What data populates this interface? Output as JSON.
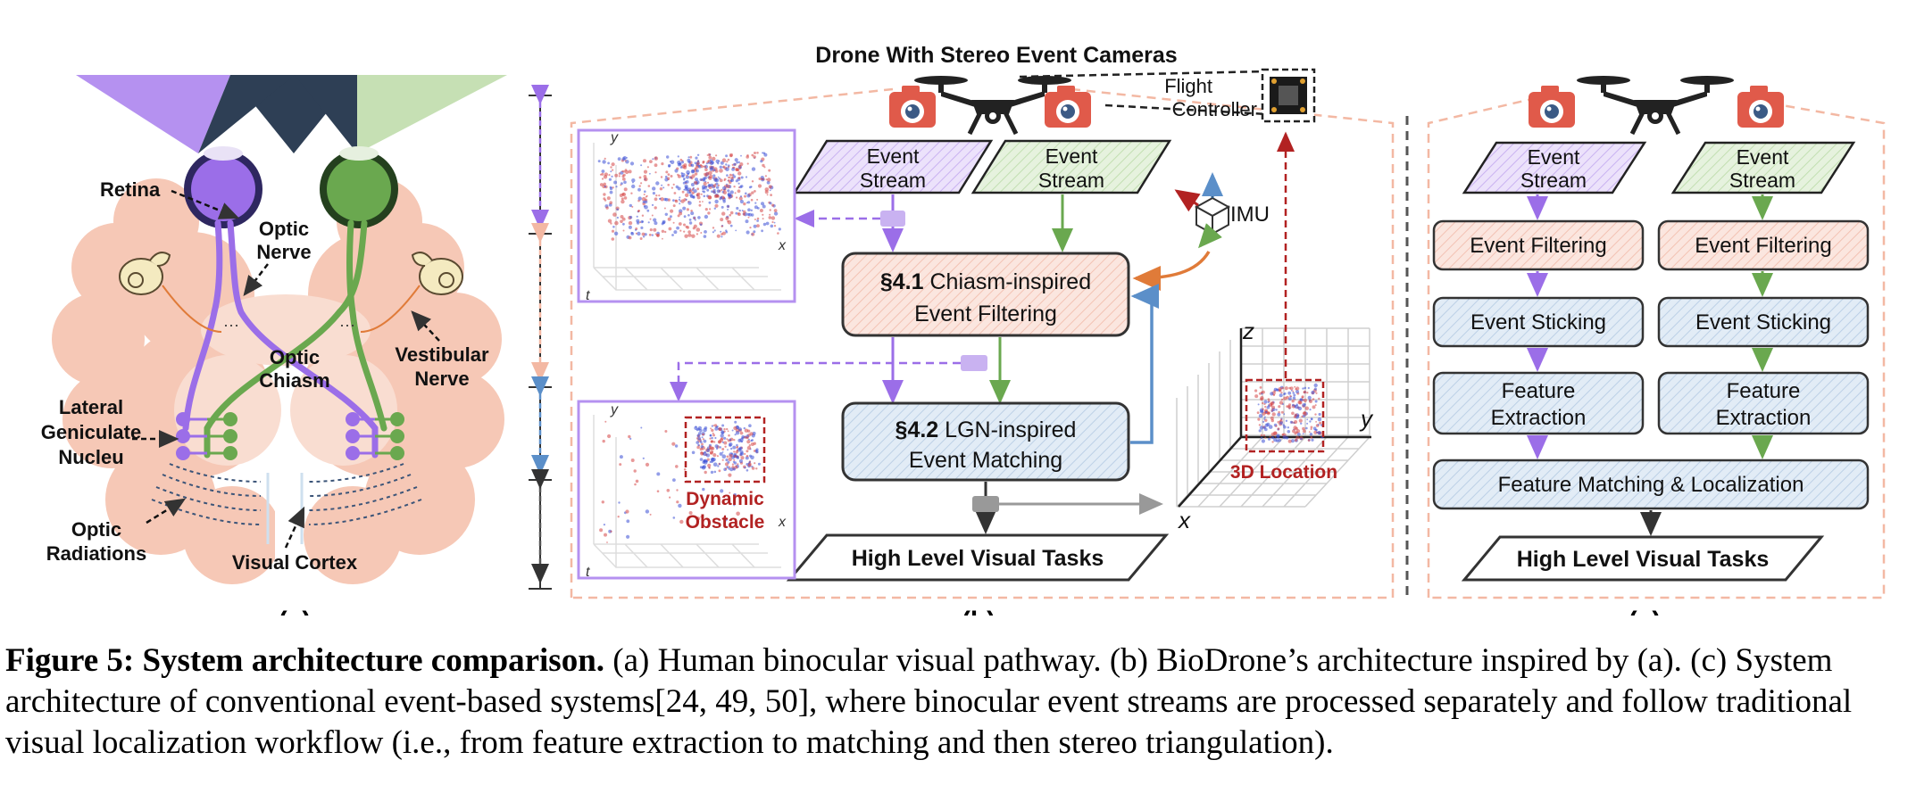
{
  "drone_title": "Drone With Stereo Event Cameras",
  "panel_a": {
    "retina": "Retina",
    "optic_nerve": [
      "Optic",
      "Nerve"
    ],
    "optic_chiasm": [
      "Optic",
      "Chiasm"
    ],
    "vestibular_nerve": [
      "Vestibular",
      "Nerve"
    ],
    "lgn": [
      "Lateral",
      "Geniculate",
      "Nucleu"
    ],
    "optic_radiations": [
      "Optic",
      "Radiations"
    ],
    "visual_cortex": "Visual Cortex",
    "sublabel": "(a)"
  },
  "panel_b": {
    "event_stream": [
      "Event",
      "Stream"
    ],
    "flight_controller": [
      "Flight",
      "Controller"
    ],
    "imu": "IMU",
    "chiasm_box": {
      "section": "§4.1",
      "line1": "Chiasm-inspired",
      "line2": "Event Filtering"
    },
    "lgn_box": {
      "section": "§4.2",
      "line1": "LGN-inspired",
      "line2": "Event Matching"
    },
    "high_level": "High Level Visual Tasks",
    "dynamic_obstacle": [
      "Dynamic",
      "Obstacle"
    ],
    "location_3d": "3D Location",
    "axes": {
      "x": "x",
      "y": "y",
      "z": "z",
      "t": "t"
    },
    "sublabel": "(b)"
  },
  "panel_c": {
    "event_stream": [
      "Event",
      "Stream"
    ],
    "event_filtering": "Event Filtering",
    "event_sticking": "Event Sticking",
    "feature_extraction": [
      "Feature",
      "Extraction"
    ],
    "feature_matching": "Feature Matching & Localization",
    "high_level": "High Level Visual Tasks",
    "sublabel": "(c)"
  },
  "caption": {
    "bold": "Figure 5: System architecture comparison.",
    "text": " (a) Human binocular visual pathway. (b) BioDrone’s architecture inspired by (a). (c) System architecture of conventional event-based systems[24, 49, 50], where binocular event streams are processed separately and follow traditional visual localization workflow (i.e., from feature extraction to matching and then stereo triangulation)."
  },
  "colors": {
    "purple": "#9b6ee8",
    "green": "#6aa84f",
    "salmon": "#f3b8a3",
    "blue_box": "#dfeaf5",
    "pink_box": "#fbe6df",
    "dark_red": "#b22222",
    "camera_red": "#e05a4a"
  }
}
